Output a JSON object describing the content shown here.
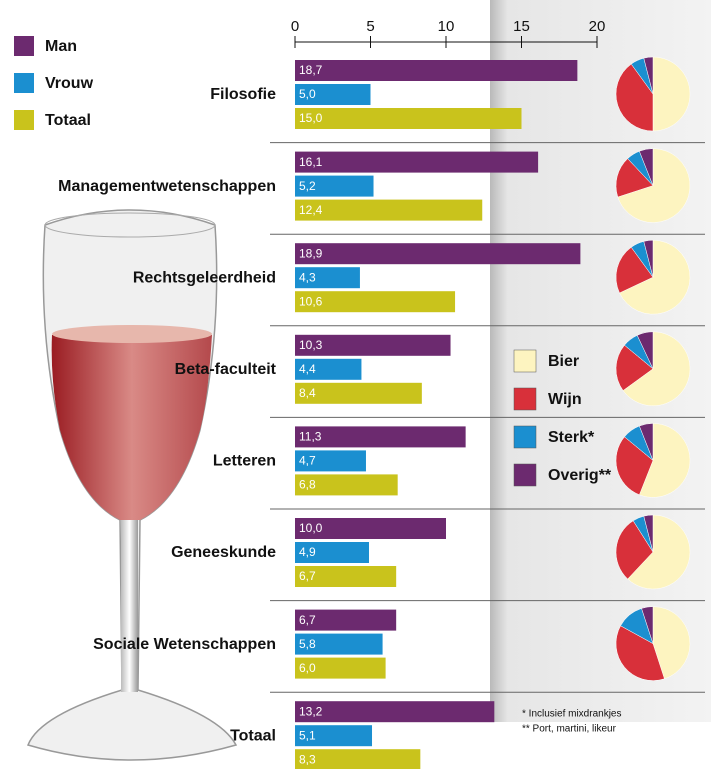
{
  "chart_data": [
    {
      "type": "bar",
      "categories": [
        "Filosofie",
        "Managementwetenschappen",
        "Rechtsgeleerdheid",
        "Beta-faculteit",
        "Letteren",
        "Geneeskunde",
        "Sociale Wetenschappen",
        "Totaal"
      ],
      "series": [
        {
          "name": "Man",
          "color": "#6c2a6f",
          "values": [
            18.7,
            16.1,
            18.9,
            10.3,
            11.3,
            10.0,
            6.7,
            13.2
          ],
          "value_labels": [
            "18,7",
            "16,1",
            "18,9",
            "10,3",
            "11,3",
            "10,0",
            "6,7",
            "13,2"
          ]
        },
        {
          "name": "Vrouw",
          "color": "#1b8fd0",
          "values": [
            5.0,
            5.2,
            4.3,
            4.4,
            4.7,
            4.9,
            5.8,
            5.1
          ],
          "value_labels": [
            "5,0",
            "5,2",
            "4,3",
            "4,4",
            "4,7",
            "4,9",
            "5,8",
            "5,1"
          ]
        },
        {
          "name": "Totaal",
          "color": "#c9c31c",
          "values": [
            15.0,
            12.4,
            10.6,
            8.4,
            6.8,
            6.7,
            6.0,
            8.3
          ],
          "value_labels": [
            "15,0",
            "12,4",
            "10,6",
            "8,4",
            "6,8",
            "6,7",
            "6,0",
            "8,3"
          ]
        }
      ],
      "xlim": [
        0,
        20
      ],
      "xticks": [
        0,
        5,
        10,
        15,
        20
      ]
    },
    {
      "type": "pie",
      "labels": [
        "Bier",
        "Wijn",
        "Sterk*",
        "Overig**"
      ],
      "colors": [
        "#fdf4c0",
        "#d8303a",
        "#1b8fd0",
        "#6c2a6f"
      ],
      "values": [
        [
          50,
          40,
          6,
          4
        ],
        [
          70,
          18,
          6,
          6
        ],
        [
          68,
          22,
          6,
          4
        ],
        [
          65,
          21,
          7,
          7
        ],
        [
          56,
          30,
          8,
          6
        ],
        [
          62,
          29,
          5,
          4
        ],
        [
          45,
          38,
          12,
          5
        ]
      ],
      "notes": [
        "* Inclusief mixdrankjes",
        "** Port, martini, likeur"
      ]
    }
  ]
}
